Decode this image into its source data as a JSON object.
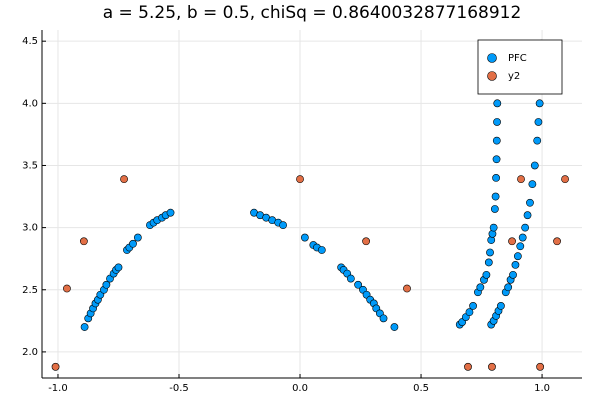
{
  "chart_data": {
    "type": "scatter",
    "title": "a = 5.25, b = 0.5, chiSq = 0.8640032877168912",
    "xlim": [
      -1.066,
      1.165
    ],
    "ylim": [
      1.79,
      4.59
    ],
    "xticks": [
      {
        "value": -1,
        "label": "-1.0"
      },
      -0.5,
      {
        "value": 0,
        "label": "0.0"
      },
      0.5,
      {
        "value": 1,
        "label": "1.0"
      }
    ],
    "yticks": [
      {
        "value": 2,
        "label": "2.0"
      },
      2.5,
      {
        "value": 3,
        "label": "3.0"
      },
      3.5,
      {
        "value": 4,
        "label": "4.0"
      },
      4.5
    ],
    "grid": true,
    "legend": "top-right",
    "series": [
      {
        "name": "PFC",
        "color": "#009af9",
        "x": [
          -0.89,
          -0.875,
          -0.865,
          -0.855,
          -0.845,
          -0.835,
          -0.825,
          -0.81,
          -0.8,
          -0.785,
          -0.77,
          -0.76,
          -0.75,
          -0.715,
          -0.705,
          -0.69,
          -0.67,
          -0.62,
          -0.605,
          -0.59,
          -0.57,
          -0.555,
          -0.535,
          -0.19,
          -0.165,
          -0.14,
          -0.115,
          -0.09,
          -0.07,
          0.02,
          0.055,
          0.07,
          0.09,
          0.17,
          0.18,
          0.195,
          0.21,
          0.24,
          0.26,
          0.275,
          0.29,
          0.305,
          0.315,
          0.33,
          0.345,
          0.39,
          0.66,
          0.67,
          0.685,
          0.7,
          0.715,
          0.735,
          0.745,
          0.76,
          0.77,
          0.78,
          0.785,
          0.79,
          0.795,
          0.8,
          0.805,
          0.808,
          0.81,
          0.812,
          0.813,
          0.814,
          0.815,
          0.815,
          0.815,
          0.815,
          0.79,
          0.8,
          0.81,
          0.82,
          0.83,
          0.85,
          0.86,
          0.87,
          0.88,
          0.89,
          0.9,
          0.91,
          0.92,
          0.93,
          0.94,
          0.95,
          0.96,
          0.97,
          0.98,
          0.985,
          0.99,
          0.993,
          0.995,
          0.997
        ],
        "values": [
          2.2,
          2.27,
          2.31,
          2.35,
          2.39,
          2.42,
          2.46,
          2.5,
          2.54,
          2.59,
          2.63,
          2.66,
          2.68,
          2.82,
          2.84,
          2.87,
          2.92,
          3.02,
          3.04,
          3.06,
          3.08,
          3.1,
          3.12,
          3.12,
          3.1,
          3.08,
          3.06,
          3.04,
          3.02,
          2.92,
          2.86,
          2.84,
          2.82,
          2.68,
          2.66,
          2.63,
          2.59,
          2.54,
          2.5,
          2.46,
          2.42,
          2.39,
          2.35,
          2.31,
          2.27,
          2.2,
          2.22,
          2.24,
          2.28,
          2.32,
          2.37,
          2.48,
          2.52,
          2.58,
          2.62,
          2.72,
          2.8,
          2.9,
          2.95,
          3.0,
          3.15,
          3.25,
          3.4,
          3.55,
          3.7,
          3.85,
          4.0,
          4.15,
          4.3,
          4.45,
          2.22,
          2.25,
          2.29,
          2.33,
          2.37,
          2.48,
          2.52,
          2.58,
          2.62,
          2.7,
          2.77,
          2.85,
          2.92,
          3.0,
          3.1,
          3.2,
          3.35,
          3.5,
          3.7,
          3.85,
          4.0,
          4.15,
          4.3,
          4.48
        ]
      },
      {
        "name": "y2",
        "color": "#e26f46",
        "x": [
          -1.01,
          -0.963,
          -0.893,
          -0.727,
          0,
          0.273,
          0.442,
          0.694,
          0.793,
          0.876,
          0.913,
          0.992,
          1.062,
          1.095
        ],
        "values": [
          1.88,
          2.51,
          2.89,
          3.39,
          3.39,
          2.89,
          2.51,
          1.88,
          1.88,
          2.89,
          3.39,
          1.88,
          2.89,
          3.39
        ]
      }
    ]
  }
}
